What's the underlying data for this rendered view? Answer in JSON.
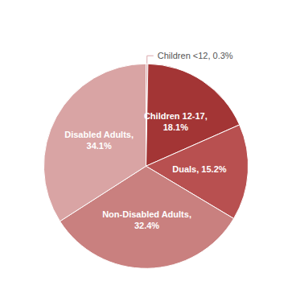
{
  "chart_data": {
    "type": "pie",
    "categories": [
      "Children <12",
      "Children 12-17",
      "Duals",
      "Non-Disabled Adults",
      "Disabled Adults"
    ],
    "values": [
      0.3,
      18.1,
      15.2,
      32.4,
      34.1
    ],
    "value_labels": [
      "Children <12, 0.3%",
      "Children 12-17,\n18.1%",
      "Duals, 15.2%",
      "Non-Disabled Adults,\n32.4%",
      "Disabled Adults,\n34.1%"
    ],
    "colors": [
      "#dba8ac",
      "#a33535",
      "#b85050",
      "#c9807f",
      "#d9a4a4"
    ]
  }
}
